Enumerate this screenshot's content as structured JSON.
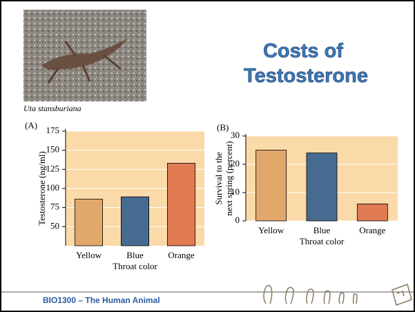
{
  "slide": {
    "title_lines": [
      "Costs of",
      "Testosterone"
    ],
    "caption": "Uta stansburiana",
    "footer": "BIO1300 – The Human Animal"
  },
  "chart_data": [
    {
      "type": "bar",
      "panel": "(A)",
      "ylabel": "Testosterone (ng/ml)",
      "xlabel": "Throat color",
      "categories": [
        "Yellow",
        "Blue",
        "Orange"
      ],
      "values": [
        86,
        89,
        133
      ],
      "colors": [
        "#e2a76b",
        "#466a90",
        "#e07b54"
      ],
      "ylim": [
        25,
        175
      ],
      "yticks": [
        50,
        75,
        100,
        125,
        150,
        175
      ],
      "grid": true
    },
    {
      "type": "bar",
      "panel": "(B)",
      "ylabel": [
        "Survival to the",
        "next spring (percent)"
      ],
      "xlabel": "Throat color",
      "categories": [
        "Yellow",
        "Blue",
        "Orange"
      ],
      "values": [
        25,
        24,
        6
      ],
      "colors": [
        "#e2a76b",
        "#466a90",
        "#e07b54"
      ],
      "ylim": [
        0,
        30
      ],
      "yticks": [
        0,
        10,
        20,
        30
      ],
      "grid": true
    }
  ]
}
